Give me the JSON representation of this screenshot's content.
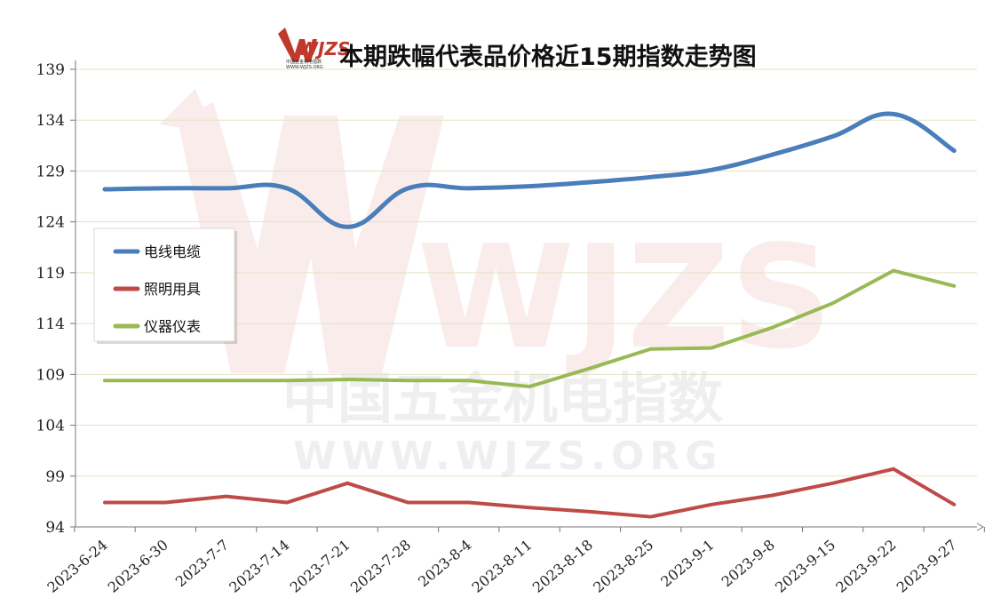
{
  "chart_data": {
    "type": "line",
    "title": "本期跌幅代表品价格近15期指数走势图",
    "categories": [
      "2023-6-24",
      "2023-6-30",
      "2023-7-7",
      "2023-7-14",
      "2023-7-21",
      "2023-7-28",
      "2023-8-4",
      "2023-8-11",
      "2023-8-18",
      "2023-8-25",
      "2023-9-1",
      "2023-9-8",
      "2023-9-15",
      "2023-9-22",
      "2023-9-27"
    ],
    "ylim": [
      94,
      139
    ],
    "yticks": [
      94,
      99,
      104,
      109,
      114,
      119,
      124,
      129,
      134,
      139
    ],
    "grid": true,
    "legend_position": "left",
    "series": [
      {
        "name": "电线电缆",
        "color": "#4a7ebb",
        "smooth": true,
        "values": [
          127.2,
          127.3,
          127.3,
          127.3,
          123.5,
          127.3,
          127.3,
          127.5,
          127.9,
          128.4,
          129.1,
          130.6,
          132.4,
          134.6,
          131.0
        ]
      },
      {
        "name": "照明用具",
        "color": "#be4b48",
        "smooth": false,
        "values": [
          96.4,
          96.4,
          97.0,
          96.4,
          98.3,
          96.4,
          96.4,
          95.9,
          95.5,
          95.0,
          96.2,
          97.1,
          98.3,
          99.7,
          96.2
        ]
      },
      {
        "name": "仪器仪表",
        "color": "#98b954",
        "smooth": false,
        "values": [
          108.4,
          108.4,
          108.4,
          108.4,
          108.5,
          108.4,
          108.4,
          107.8,
          109.6,
          111.5,
          111.6,
          113.6,
          116.0,
          119.2,
          117.7
        ]
      }
    ]
  },
  "logo": {
    "mark": "WJZS",
    "caption": "中国五金机电指数",
    "url": "WWW.WJZS.ORG"
  },
  "watermark": {
    "mark": "WJZS",
    "cn": "中国五金机电指数",
    "url": "WWW.WJZS.ORG"
  }
}
